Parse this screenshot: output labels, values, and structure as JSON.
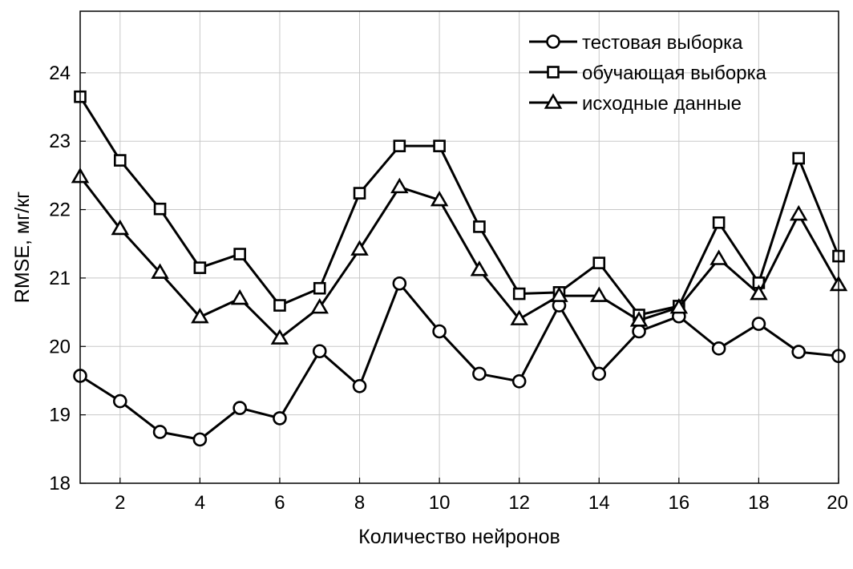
{
  "chart_data": {
    "type": "line",
    "xlabel": "Количество нейронов",
    "ylabel": "RMSE, мг/кг",
    "xlim": [
      1,
      20
    ],
    "ylim": [
      18,
      24.9
    ],
    "xticks": [
      2,
      4,
      6,
      8,
      10,
      12,
      14,
      16,
      18,
      20
    ],
    "yticks": [
      18,
      19,
      20,
      21,
      22,
      23,
      24
    ],
    "grid": true,
    "legend_position": "top-right",
    "x": [
      1,
      2,
      3,
      4,
      5,
      6,
      7,
      8,
      9,
      10,
      11,
      12,
      13,
      14,
      15,
      16,
      17,
      18,
      19,
      20
    ],
    "series": [
      {
        "name": "тестовая выборка",
        "marker": "circle",
        "values": [
          19.57,
          19.2,
          18.75,
          18.64,
          19.1,
          18.95,
          19.93,
          19.42,
          20.92,
          20.22,
          19.6,
          19.49,
          20.6,
          19.6,
          20.22,
          20.44,
          19.97,
          20.33,
          19.92,
          19.86
        ]
      },
      {
        "name": "обучающая выборка",
        "marker": "square",
        "values": [
          23.65,
          22.72,
          22.01,
          21.15,
          21.35,
          20.6,
          20.85,
          22.24,
          22.93,
          22.93,
          21.75,
          20.77,
          20.79,
          21.22,
          20.46,
          20.59,
          21.81,
          20.93,
          22.75,
          21.32
        ]
      },
      {
        "name": "исходные данные",
        "marker": "triangle",
        "values": [
          22.48,
          21.72,
          21.08,
          20.43,
          20.7,
          20.12,
          20.57,
          21.42,
          22.33,
          22.14,
          21.12,
          20.4,
          20.74,
          20.74,
          20.38,
          20.57,
          21.28,
          20.77,
          21.93,
          20.9
        ]
      }
    ]
  }
}
